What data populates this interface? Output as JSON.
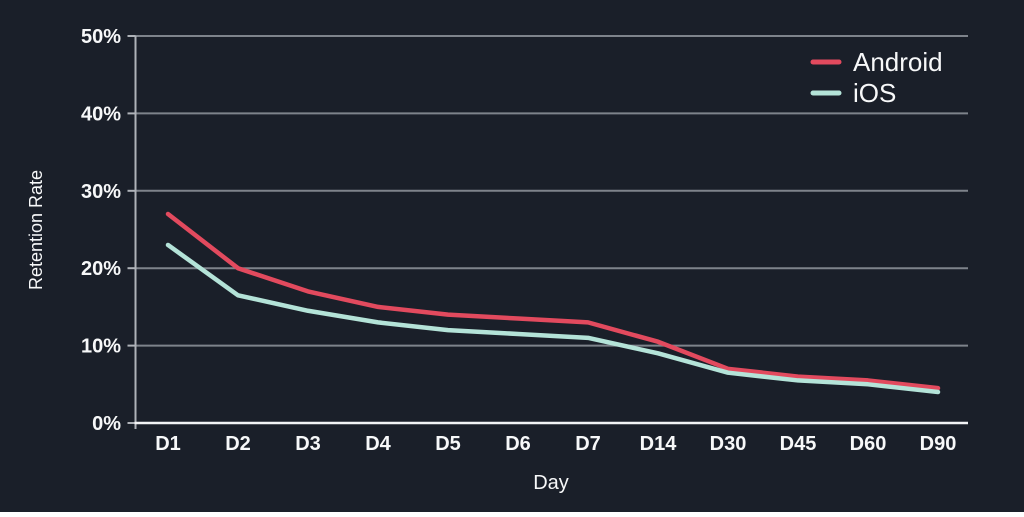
{
  "chart_data": {
    "type": "line",
    "title": "",
    "xlabel": "Day",
    "ylabel": "Retention Rate",
    "categories": [
      "D1",
      "D2",
      "D3",
      "D4",
      "D5",
      "D6",
      "D7",
      "D14",
      "D30",
      "D45",
      "D60",
      "D90"
    ],
    "series": [
      {
        "name": "Android",
        "color": "#e24a5e",
        "values": [
          27,
          20,
          17,
          15,
          14,
          13.5,
          13,
          10.5,
          7,
          6,
          5.5,
          4.5
        ]
      },
      {
        "name": "iOS",
        "color": "#b4e3d8",
        "values": [
          23,
          16.5,
          14.5,
          13,
          12,
          11.5,
          11,
          9,
          6.5,
          5.5,
          5,
          4
        ]
      }
    ],
    "y_ticks": [
      {
        "label": "0%",
        "value": 0
      },
      {
        "label": "10%",
        "value": 10
      },
      {
        "label": "20%",
        "value": 20
      },
      {
        "label": "30%",
        "value": 30
      },
      {
        "label": "40%",
        "value": 40
      },
      {
        "label": "50%",
        "value": 50
      }
    ],
    "ylim": [
      0,
      50
    ],
    "grid": true,
    "legend_position": "top-right"
  },
  "colors": {
    "background": "#1a1f29",
    "gridline": "#7e838b",
    "y_axis": "#aeb2b8",
    "x_axis": "#f2f3f5",
    "text": "#f7f8f9"
  }
}
